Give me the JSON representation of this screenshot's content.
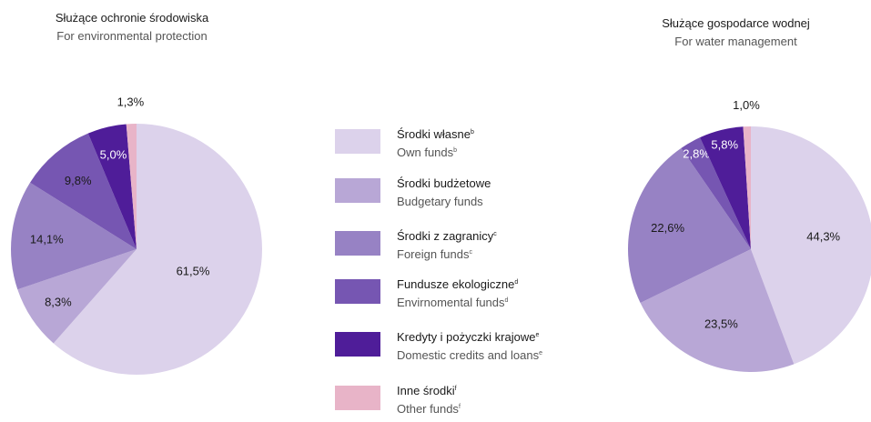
{
  "legend": [
    {
      "pl": "Środki własne",
      "pl_sup": "b",
      "en": "Own funds",
      "en_sup": "b",
      "color": "#dcd2eb"
    },
    {
      "pl": "Środki budżetowe",
      "pl_sup": "",
      "en": "Budgetary funds",
      "en_sup": "",
      "color": "#b8a7d6"
    },
    {
      "pl": "Środki z zagranicy",
      "pl_sup": "c",
      "en": "Foreign funds",
      "en_sup": "c",
      "color": "#9782c4"
    },
    {
      "pl": "Fundusze ekologiczne",
      "pl_sup": "d",
      "en": "Envirnomental funds",
      "en_sup": "d",
      "color": "#7656b2"
    },
    {
      "pl": "Kredyty i pożyczki krajowe",
      "pl_sup": "e",
      "en": "Domestic credits and loans",
      "en_sup": "e",
      "color": "#4f1d99"
    },
    {
      "pl": "Inne środki",
      "pl_sup": "f",
      "en": "Other funds",
      "en_sup": "f",
      "color": "#e8b4c8"
    }
  ],
  "chart_data": [
    {
      "type": "pie",
      "title": "Służące ochronie środowiska",
      "subtitle": "For environmental protection",
      "categories": [
        "Środki własne",
        "Środki budżetowe",
        "Środki z zagranicy",
        "Fundusze ekologiczne",
        "Kredyty i pożyczki krajowe",
        "Inne środki"
      ],
      "values": [
        61.5,
        8.3,
        14.1,
        9.8,
        5.0,
        1.3
      ],
      "labels": [
        "61,5%",
        "8,3%",
        "14,1%",
        "9,8%",
        "5,0%",
        "1,3%"
      ],
      "colors": [
        "#dcd2eb",
        "#b8a7d6",
        "#9782c4",
        "#7656b2",
        "#4f1d99",
        "#e8b4c8"
      ]
    },
    {
      "type": "pie",
      "title": "Służące gospodarce wodnej",
      "subtitle": "For water management",
      "categories": [
        "Środki własne",
        "Środki budżetowe",
        "Środki z zagranicy",
        "Fundusze ekologiczne",
        "Kredyty i pożyczki krajowe",
        "Inne środki"
      ],
      "values": [
        44.3,
        23.5,
        22.6,
        2.8,
        5.8,
        1.0
      ],
      "labels": [
        "44,3%",
        "23,5%",
        "22,6%",
        "2,8%",
        "5,8%",
        "1,0%"
      ],
      "colors": [
        "#dcd2eb",
        "#b8a7d6",
        "#9782c4",
        "#7656b2",
        "#4f1d99",
        "#e8b4c8"
      ]
    }
  ]
}
